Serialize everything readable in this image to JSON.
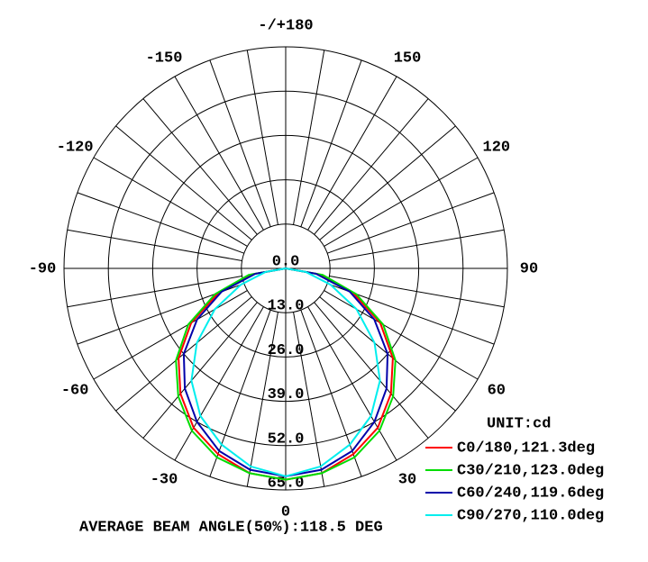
{
  "chart_data": {
    "type": "polar",
    "x": [
      -90,
      -80,
      -70,
      -60,
      -50,
      -40,
      -30,
      -20,
      -10,
      0,
      10,
      20,
      30,
      40,
      50,
      60,
      70,
      80,
      90
    ],
    "series": [
      {
        "name": "C0/180,121.3deg",
        "color": "#ff0000",
        "values": [
          0,
          10,
          21,
          32,
          41,
          48,
          54,
          58,
          61,
          62,
          61,
          58,
          54,
          48,
          41,
          32,
          21,
          10,
          0
        ]
      },
      {
        "name": "C30/210,123.0deg",
        "color": "#00dd00",
        "values": [
          0,
          11,
          22,
          33,
          42,
          49,
          55,
          59,
          61,
          62,
          61,
          59,
          55,
          49,
          42,
          33,
          22,
          11,
          0
        ]
      },
      {
        "name": "C60/240,119.6deg",
        "color": "#0000aa",
        "values": [
          0,
          9,
          20,
          30,
          39,
          46,
          52,
          57,
          60,
          61,
          60,
          57,
          52,
          46,
          39,
          30,
          20,
          9,
          0
        ]
      },
      {
        "name": "C90/270,110.0deg",
        "color": "#00eeee",
        "values": [
          0,
          6,
          14,
          24,
          34,
          43,
          50,
          55,
          59,
          61,
          59,
          55,
          50,
          43,
          34,
          24,
          14,
          6,
          0
        ]
      }
    ],
    "rlim": [
      0,
      65
    ],
    "rticks": [
      {
        "value": 0,
        "label": "0.0"
      },
      {
        "value": 13,
        "label": "13.0"
      },
      {
        "value": 26,
        "label": "26.0"
      },
      {
        "value": 39,
        "label": "39.0"
      },
      {
        "value": 52,
        "label": "52.0"
      },
      {
        "value": 65,
        "label": "65.0"
      }
    ],
    "angle_ticks": [
      {
        "value": 180,
        "label": "-/+180"
      },
      -150,
      150,
      -120,
      120,
      -90,
      90,
      -60,
      60,
      -30,
      30,
      0
    ],
    "legend_title": "UNIT:cd",
    "footer": "AVERAGE BEAM ANGLE(50%):118.5 DEG"
  }
}
